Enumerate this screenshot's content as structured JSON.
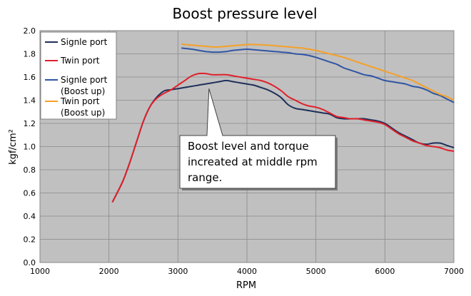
{
  "chart_data": {
    "type": "line",
    "title": "Boost pressure level",
    "xlabel": "RPM",
    "ylabel": "kgf/cm²",
    "xlim": [
      1000,
      7000
    ],
    "ylim": [
      0.0,
      2.0
    ],
    "x_ticks": [
      1000,
      2000,
      3000,
      4000,
      5000,
      6000,
      7000
    ],
    "y_ticks": [
      "0.0",
      "0.2",
      "0.4",
      "0.6",
      "0.8",
      "1.0",
      "1.2",
      "1.4",
      "1.6",
      "1.8",
      "2.0"
    ],
    "grid": true,
    "legend_position": "top-left",
    "series": [
      {
        "name": "Signle port",
        "color": "#1f2f5a",
        "x": [
          2050,
          2200,
          2300,
          2400,
          2500,
          2600,
          2700,
          2800,
          2900,
          3000,
          3100,
          3200,
          3300,
          3400,
          3500,
          3600,
          3700,
          3800,
          3900,
          4000,
          4100,
          4200,
          4300,
          4400,
          4500,
          4600,
          4700,
          4800,
          4900,
          5000,
          5100,
          5200,
          5300,
          5400,
          5500,
          5600,
          5700,
          5800,
          5900,
          6000,
          6100,
          6200,
          6300,
          6400,
          6500,
          6600,
          6700,
          6800,
          6900,
          7000
        ],
        "y": [
          0.52,
          0.7,
          0.86,
          1.04,
          1.22,
          1.35,
          1.43,
          1.48,
          1.49,
          1.5,
          1.51,
          1.52,
          1.53,
          1.54,
          1.55,
          1.56,
          1.57,
          1.56,
          1.55,
          1.54,
          1.53,
          1.51,
          1.49,
          1.46,
          1.42,
          1.36,
          1.33,
          1.32,
          1.31,
          1.3,
          1.29,
          1.28,
          1.25,
          1.24,
          1.24,
          1.24,
          1.24,
          1.23,
          1.22,
          1.2,
          1.16,
          1.12,
          1.09,
          1.06,
          1.03,
          1.02,
          1.03,
          1.03,
          1.01,
          0.99
        ]
      },
      {
        "name": "Twin port",
        "color": "#e0202a",
        "x": [
          2050,
          2200,
          2300,
          2400,
          2500,
          2600,
          2700,
          2800,
          2900,
          3000,
          3100,
          3200,
          3300,
          3400,
          3500,
          3600,
          3700,
          3800,
          3900,
          4000,
          4100,
          4200,
          4300,
          4400,
          4500,
          4600,
          4700,
          4800,
          4900,
          5000,
          5100,
          5200,
          5300,
          5400,
          5500,
          5600,
          5700,
          5800,
          5900,
          6000,
          6100,
          6200,
          6300,
          6400,
          6500,
          6600,
          6700,
          6800,
          6900,
          7000
        ],
        "y": [
          0.52,
          0.7,
          0.86,
          1.04,
          1.22,
          1.35,
          1.42,
          1.46,
          1.49,
          1.53,
          1.57,
          1.61,
          1.63,
          1.63,
          1.62,
          1.62,
          1.62,
          1.61,
          1.6,
          1.59,
          1.58,
          1.57,
          1.55,
          1.52,
          1.48,
          1.43,
          1.4,
          1.37,
          1.35,
          1.34,
          1.32,
          1.29,
          1.26,
          1.25,
          1.24,
          1.24,
          1.23,
          1.22,
          1.21,
          1.19,
          1.15,
          1.11,
          1.08,
          1.05,
          1.03,
          1.01,
          1.0,
          0.99,
          0.97,
          0.96
        ]
      },
      {
        "name": "Signle port (Boost up)",
        "color": "#2f55a4",
        "x": [
          3050,
          3200,
          3300,
          3400,
          3500,
          3600,
          3700,
          3800,
          3900,
          4000,
          4100,
          4200,
          4300,
          4400,
          4500,
          4600,
          4700,
          4800,
          4900,
          5000,
          5100,
          5200,
          5300,
          5400,
          5500,
          5600,
          5700,
          5800,
          5900,
          6000,
          6100,
          6200,
          6300,
          6400,
          6500,
          6600,
          6700,
          6800,
          6900,
          7000
        ],
        "y": [
          1.85,
          1.84,
          1.83,
          1.82,
          1.815,
          1.815,
          1.82,
          1.83,
          1.835,
          1.84,
          1.835,
          1.83,
          1.825,
          1.82,
          1.815,
          1.81,
          1.8,
          1.795,
          1.785,
          1.77,
          1.75,
          1.73,
          1.71,
          1.68,
          1.66,
          1.64,
          1.62,
          1.61,
          1.59,
          1.57,
          1.56,
          1.55,
          1.54,
          1.52,
          1.51,
          1.49,
          1.46,
          1.44,
          1.41,
          1.38
        ]
      },
      {
        "name": "Twin port (Boost up)",
        "color": "#f5a027",
        "x": [
          3050,
          3200,
          3300,
          3400,
          3500,
          3600,
          3700,
          3800,
          3900,
          4000,
          4100,
          4200,
          4300,
          4400,
          4500,
          4600,
          4700,
          4800,
          4900,
          5000,
          5100,
          5200,
          5300,
          5400,
          5500,
          5600,
          5700,
          5800,
          5900,
          6000,
          6100,
          6200,
          6300,
          6400,
          6500,
          6600,
          6700,
          6800,
          6900,
          7000
        ],
        "y": [
          1.885,
          1.875,
          1.87,
          1.865,
          1.86,
          1.86,
          1.865,
          1.87,
          1.875,
          1.88,
          1.88,
          1.878,
          1.875,
          1.87,
          1.865,
          1.86,
          1.855,
          1.85,
          1.84,
          1.83,
          1.815,
          1.8,
          1.785,
          1.77,
          1.75,
          1.73,
          1.71,
          1.69,
          1.67,
          1.65,
          1.63,
          1.61,
          1.59,
          1.57,
          1.54,
          1.51,
          1.48,
          1.45,
          1.43,
          1.4
        ]
      }
    ],
    "annotation": {
      "text_lines": [
        "Boost level and torque",
        "increated at middle rpm",
        "range."
      ],
      "point_x": 3450,
      "point_y": 1.5
    }
  }
}
